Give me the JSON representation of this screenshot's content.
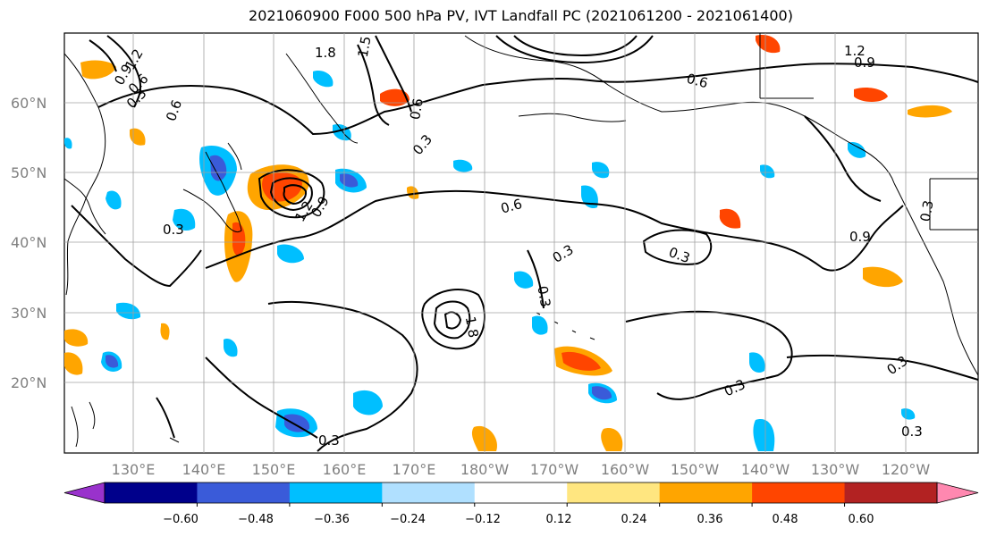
{
  "title": "2021060900 F000 500 hPa PV, IVT Landfall PC (2021061200 - 2021061400)",
  "lat_ticks": [
    "60°N",
    "50°N",
    "40°N",
    "30°N",
    "20°N"
  ],
  "lon_ticks": [
    "130°E",
    "140°E",
    "150°E",
    "160°E",
    "170°E",
    "180°W",
    "170°W",
    "160°W",
    "150°W",
    "140°W",
    "130°W",
    "120°W"
  ],
  "colorbar": {
    "colors": [
      "#9932cc",
      "#00008b",
      "#3a5bd9",
      "#00bfff",
      "#b0e0ff",
      "#ffffff",
      "#ffe680",
      "#ffa500",
      "#ff4500",
      "#b22222",
      "#ff88b0"
    ],
    "tick_labels": [
      "−0.60",
      "−0.48",
      "−0.36",
      "−0.24",
      "−0.12",
      "0.12",
      "0.24",
      "0.36",
      "0.48",
      "0.60"
    ]
  },
  "contour_labels": [
    "1.8",
    "1.5",
    "1.2",
    "0.9",
    "0.6",
    "0.3",
    "0.6",
    "0.3",
    "1.2",
    "0.9",
    "0.6",
    "0.3",
    "0.6",
    "0.3",
    "0.3",
    "0.9",
    "0.3",
    "0.3",
    "0.3",
    "0.3",
    "0.3",
    "0.6",
    "0.9",
    "1.2",
    "1.8",
    "0.3"
  ],
  "colors": {
    "land_outline": "#000000",
    "grid": "#a0a0a0",
    "contour": "#000000"
  }
}
